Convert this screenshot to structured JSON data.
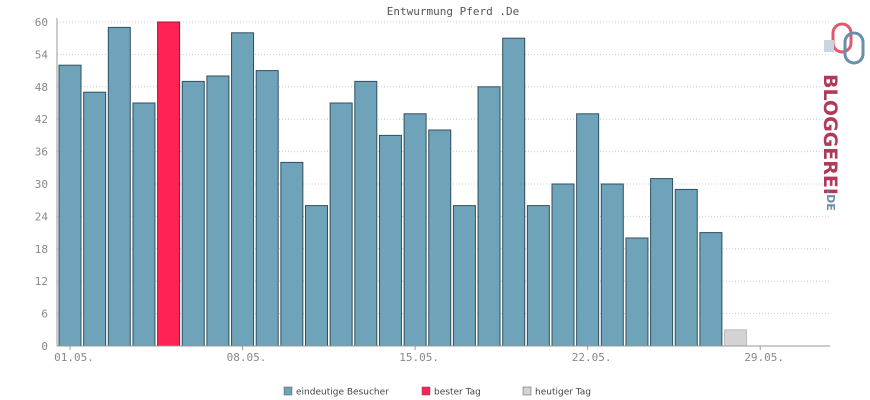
{
  "chart_data": {
    "type": "bar",
    "title": "Entwurmung Pferd .De",
    "xlabel": "",
    "ylabel": "",
    "ylim": [
      0,
      60
    ],
    "y_ticks": [
      "0",
      "6",
      "12",
      "18",
      "24",
      "30",
      "36",
      "42",
      "48",
      "54",
      "60"
    ],
    "x_tick_labels": [
      "01.05.",
      "08.05.",
      "15.05.",
      "22.05.",
      "29.05."
    ],
    "values": [
      52,
      47,
      59,
      45,
      60,
      49,
      50,
      58,
      51,
      34,
      26,
      45,
      49,
      39,
      43,
      40,
      26,
      48,
      57,
      26,
      30,
      43,
      30,
      20,
      31,
      29,
      21,
      3,
      0,
      0,
      0
    ],
    "highlight_index": 4,
    "today_index": 27,
    "grid": true,
    "legend_position": "bottom-center",
    "legend": [
      {
        "label": "eindeutige Besucher",
        "color": "#6fa3b9"
      },
      {
        "label": "bester Tag",
        "color": "#ff2255"
      },
      {
        "label": "heutiger Tag",
        "color": "#d3d3d3"
      }
    ],
    "colors": {
      "bar": "#6fa3b9",
      "best": "#ff2255",
      "today": "#d3d3d3",
      "grid": "#cccccc",
      "axis": "#999999"
    }
  },
  "logo": {
    "text_main": "BLOGGEREI",
    "text_suffix": ".DE"
  }
}
